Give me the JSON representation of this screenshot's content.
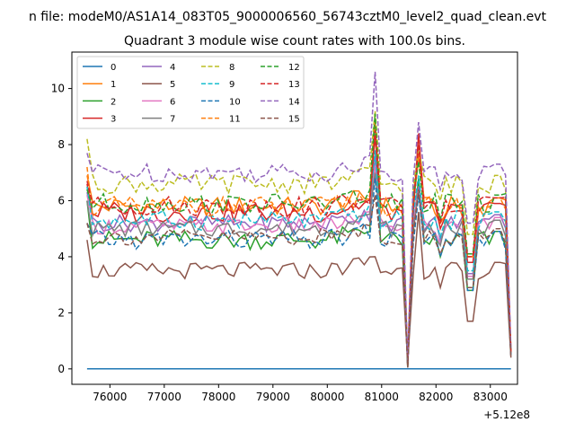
{
  "figure": {
    "suptitle": "n file: modeM0/AS1A14_083T05_9000006560_56743cztM0_level2_quad_clean.evt"
  },
  "chart_data": {
    "type": "line",
    "title": "Quadrant 3 module wise count rates with 100.0s bins.",
    "xlabel": "",
    "ylabel": "",
    "x_offset_label": "+5.12e8",
    "xlim": [
      75300,
      83500
    ],
    "ylim": [
      -0.55,
      11.3
    ],
    "xticks": [
      76000,
      77000,
      78000,
      79000,
      80000,
      81000,
      82000,
      83000
    ],
    "xtick_labels": [
      "76000",
      "77000",
      "78000",
      "79000",
      "80000",
      "81000",
      "82000",
      "83000"
    ],
    "yticks": [
      0,
      2,
      4,
      6,
      8,
      10
    ],
    "ytick_labels": [
      "0",
      "2",
      "4",
      "6",
      "8",
      "10"
    ],
    "x_start": 75580,
    "x_step": 100,
    "x_end": 83380,
    "legend": {
      "location": "upper-left",
      "columns": 4
    },
    "grid": false,
    "series": [
      {
        "name": "0",
        "color": "#1f77b4",
        "style": "solid",
        "base": 0.0,
        "amp": 0.0,
        "flat": true
      },
      {
        "name": "1",
        "color": "#ff7f0e",
        "style": "solid",
        "base": 5.8,
        "amp": 0.35,
        "start": 6.9,
        "peak": 8.6,
        "peak2": 7.5,
        "end": 0.6
      },
      {
        "name": "2",
        "color": "#2ca02c",
        "style": "solid",
        "base": 4.6,
        "amp": 0.35,
        "start": 6.0,
        "peak": 8.9,
        "peak2": 6.8,
        "end": 0.5
      },
      {
        "name": "3",
        "color": "#d62728",
        "style": "solid",
        "base": 5.6,
        "amp": 0.4,
        "start": 6.6,
        "peak": 8.3,
        "peak2": 8.4,
        "end": 0.6
      },
      {
        "name": "4",
        "color": "#9467bd",
        "style": "solid",
        "base": 5.2,
        "amp": 0.3,
        "start": 6.3,
        "peak": 7.6,
        "peak2": 6.5,
        "end": 0.5
      },
      {
        "name": "5",
        "color": "#8c564b",
        "style": "solid",
        "base": 3.5,
        "amp": 0.3,
        "start": 4.6,
        "peak": 4.0,
        "peak2": 5.6,
        "end": 0.4
      },
      {
        "name": "6",
        "color": "#e377c2",
        "style": "solid",
        "base": 5.1,
        "amp": 0.3,
        "start": 6.2,
        "peak": 7.2,
        "peak2": 6.4,
        "end": 0.5
      },
      {
        "name": "7",
        "color": "#7f7f7f",
        "style": "solid",
        "base": 5.0,
        "amp": 0.3,
        "start": 6.0,
        "peak": 7.0,
        "peak2": 6.3,
        "end": 0.5
      },
      {
        "name": "8",
        "color": "#bcbd22",
        "style": "dashed",
        "base": 6.6,
        "amp": 0.35,
        "start": 8.2,
        "peak": 9.2,
        "peak2": 7.8,
        "end": 0.6
      },
      {
        "name": "9",
        "color": "#17becf",
        "style": "dashed",
        "base": 5.3,
        "amp": 0.35,
        "start": 6.5,
        "peak": 7.8,
        "peak2": 6.9,
        "end": 0.5
      },
      {
        "name": "10",
        "color": "#1f77b4",
        "style": "dashed",
        "base": 4.6,
        "amp": 0.35,
        "start": 5.2,
        "peak": 6.8,
        "peak2": 6.2,
        "end": 0.5
      },
      {
        "name": "11",
        "color": "#ff7f0e",
        "style": "dashed",
        "base": 5.8,
        "amp": 0.35,
        "start": 7.2,
        "peak": 8.8,
        "peak2": 7.7,
        "end": 0.6
      },
      {
        "name": "12",
        "color": "#2ca02c",
        "style": "dashed",
        "base": 5.9,
        "amp": 0.35,
        "start": 6.4,
        "peak": 9.1,
        "peak2": 7.4,
        "end": 0.6
      },
      {
        "name": "13",
        "color": "#d62728",
        "style": "dashed",
        "base": 5.8,
        "amp": 0.35,
        "start": 6.7,
        "peak": 8.5,
        "peak2": 8.0,
        "end": 0.6
      },
      {
        "name": "14",
        "color": "#9467bd",
        "style": "dashed",
        "base": 7.0,
        "amp": 0.35,
        "start": 7.7,
        "peak": 10.6,
        "peak2": 8.8,
        "end": 0.7
      },
      {
        "name": "15",
        "color": "#8c564b",
        "style": "dashed",
        "base": 4.7,
        "amp": 0.3,
        "start": 5.2,
        "peak": 6.2,
        "peak2": 6.4,
        "end": 0.4
      }
    ]
  }
}
